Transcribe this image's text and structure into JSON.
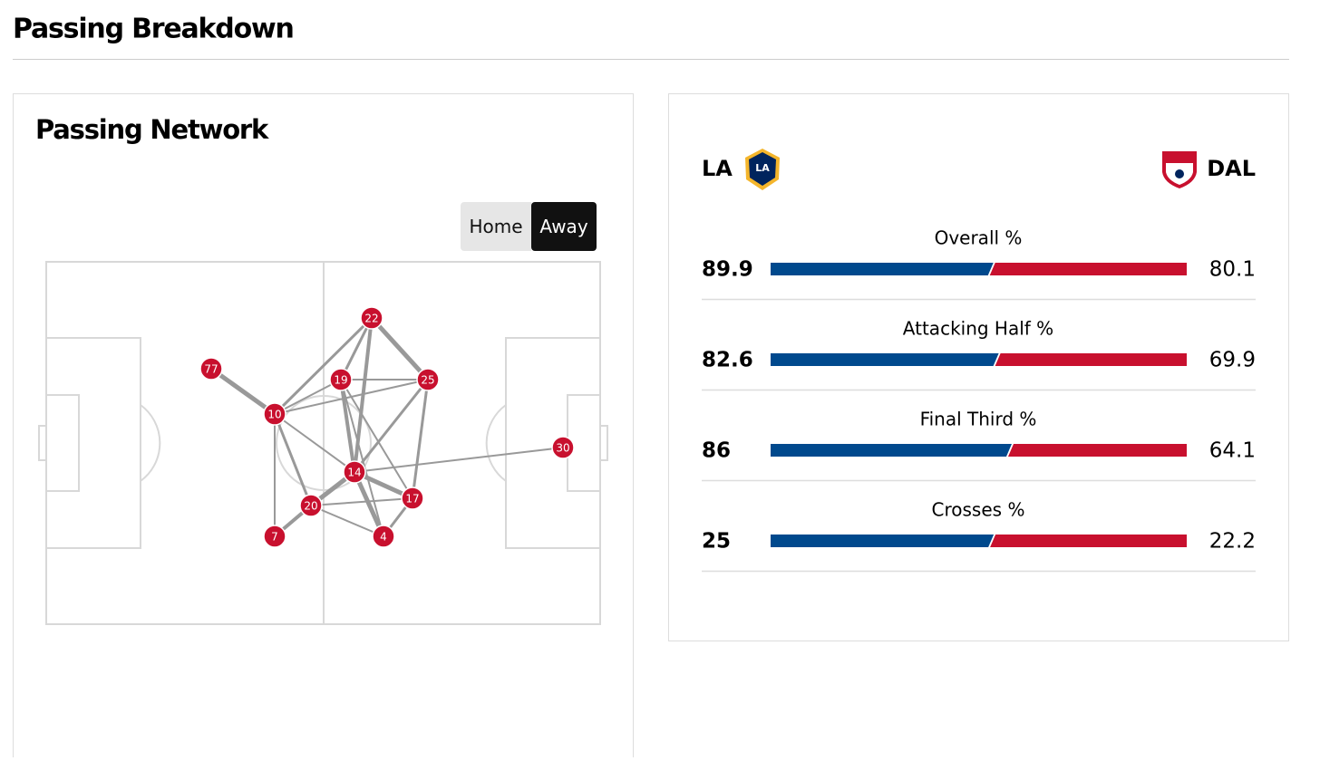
{
  "header": {
    "title": "Passing Breakdown"
  },
  "network": {
    "title": "Passing Network",
    "tabs": [
      "Home",
      "Away"
    ],
    "active_tab": 1,
    "players": [
      22,
      77,
      19,
      25,
      10,
      30,
      14,
      17,
      20,
      7,
      4
    ],
    "node_color": "#c8102e"
  },
  "stats": {
    "home_team": "LA",
    "away_team": "DAL",
    "home_color": "#00498d",
    "away_color": "#c8102e",
    "rows": [
      {
        "label": "Overall %",
        "home": 89.9,
        "away": 80.1
      },
      {
        "label": "Attacking Half %",
        "home": 82.6,
        "away": 69.9
      },
      {
        "label": "Final Third %",
        "home": 86,
        "away": 64.1
      },
      {
        "label": "Crosses %",
        "home": 25,
        "away": 22.2
      }
    ]
  }
}
